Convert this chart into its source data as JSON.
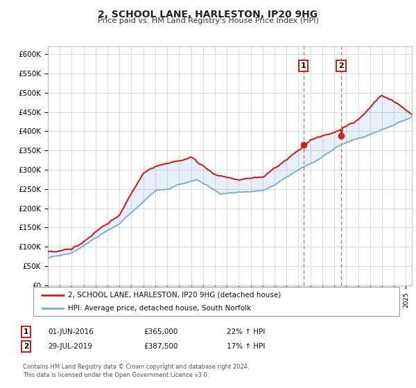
{
  "title": "2, SCHOOL LANE, HARLESTON, IP20 9HG",
  "subtitle": "Price paid vs. HM Land Registry's House Price Index (HPI)",
  "xlim": [
    1995.0,
    2025.5
  ],
  "ylim": [
    0,
    620000
  ],
  "yticks": [
    0,
    50000,
    100000,
    150000,
    200000,
    250000,
    300000,
    350000,
    400000,
    450000,
    500000,
    550000,
    600000
  ],
  "ytick_labels": [
    "£0",
    "£50K",
    "£100K",
    "£150K",
    "£200K",
    "£250K",
    "£300K",
    "£350K",
    "£400K",
    "£450K",
    "£500K",
    "£550K",
    "£600K"
  ],
  "sale1_date": 2016.42,
  "sale1_price": 365000,
  "sale1_label": "01-JUN-2016",
  "sale1_pct": "22%",
  "sale2_date": 2019.58,
  "sale2_price": 387500,
  "sale2_label": "29-JUL-2019",
  "sale2_pct": "17%",
  "legend_line1": "2, SCHOOL LANE, HARLESTON, IP20 9HG (detached house)",
  "legend_line2": "HPI: Average price, detached house, South Norfolk",
  "footnote": "Contains HM Land Registry data © Crown copyright and database right 2024.\nThis data is licensed under the Open Government Licence v3.0.",
  "hpi_color": "#7aaed6",
  "price_color": "#cc2222",
  "background_color": "#ffffff",
  "grid_color": "#cccccc"
}
